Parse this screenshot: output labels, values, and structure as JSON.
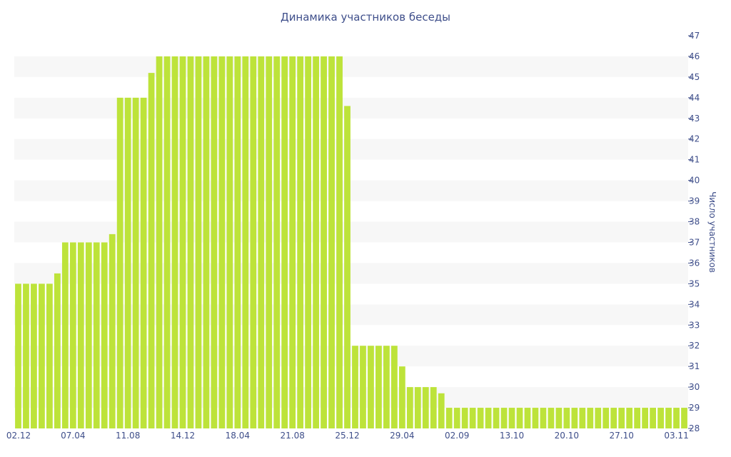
{
  "chart_data": {
    "type": "bar",
    "title": "Динамика участников беседы",
    "xlabel": "",
    "ylabel": "Число участников",
    "ylim": [
      28,
      47
    ],
    "yticks": [
      28,
      29,
      30,
      31,
      32,
      33,
      34,
      35,
      36,
      37,
      38,
      39,
      40,
      41,
      42,
      43,
      44,
      45,
      46,
      47
    ],
    "xtick_labels": [
      "02.12",
      "07.04",
      "11.08",
      "14.12",
      "18.04",
      "21.08",
      "25.12",
      "29.04",
      "02.09",
      "13.10",
      "20.10",
      "27.10",
      "03.11"
    ],
    "xtick_bar_index": [
      0,
      7,
      14,
      21,
      28,
      35,
      42,
      49,
      56,
      63,
      70,
      77,
      84
    ],
    "grid": "alternating horizontal bands",
    "bar_color": "#bde33a",
    "values": [
      35,
      35,
      35,
      35,
      35,
      35.5,
      37,
      37,
      37,
      37,
      37,
      37,
      37.4,
      44,
      44,
      44,
      44,
      45.2,
      46,
      46,
      46,
      46,
      46,
      46,
      46,
      46,
      46,
      46,
      46,
      46,
      46,
      46,
      46,
      46,
      46,
      46,
      46,
      46,
      46,
      46,
      46,
      46,
      43.6,
      32,
      32,
      32,
      32,
      32,
      32,
      31,
      30,
      30,
      30,
      30,
      29.7,
      29,
      29,
      29,
      29,
      29,
      29,
      29,
      29,
      29,
      29,
      29,
      29,
      29,
      29,
      29,
      29,
      29,
      29,
      29,
      29,
      29,
      29,
      29,
      29,
      29,
      29,
      29,
      29,
      29,
      29,
      29
    ]
  }
}
